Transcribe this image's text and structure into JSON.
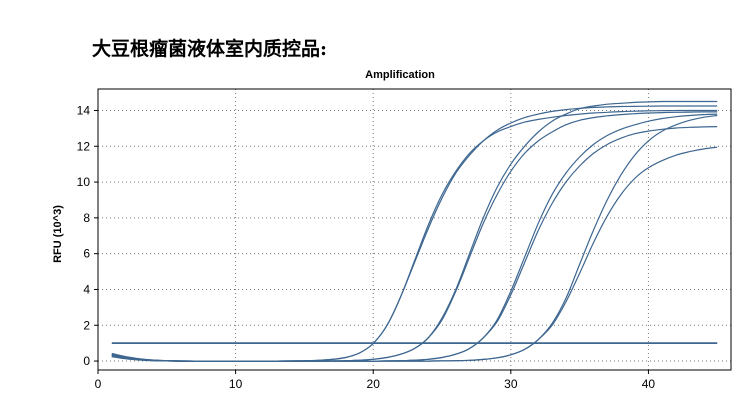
{
  "page": {
    "title": "大豆根瘤菌液体室内质控品:"
  },
  "chart_data": {
    "type": "line",
    "title": "Amplification",
    "xlabel": "",
    "ylabel": "RFU (10^3)",
    "xlim": [
      0,
      46
    ],
    "ylim": [
      -0.5,
      15.2
    ],
    "xticks": [
      0,
      10,
      20,
      30,
      40
    ],
    "yticks": [
      0,
      2,
      4,
      6,
      8,
      10,
      12,
      14
    ],
    "grid": true,
    "legend": "none",
    "line_color": "#3d6690",
    "threshold": {
      "value": 1.0,
      "x_range": [
        1,
        45
      ]
    },
    "x": [
      1,
      2,
      3,
      4,
      5,
      6,
      7,
      8,
      9,
      10,
      11,
      12,
      13,
      14,
      15,
      16,
      17,
      18,
      19,
      20,
      21,
      22,
      23,
      24,
      25,
      26,
      27,
      28,
      29,
      30,
      31,
      32,
      33,
      34,
      35,
      36,
      37,
      38,
      39,
      40,
      41,
      42,
      43,
      44,
      45
    ],
    "series": [
      {
        "values": [
          0.42,
          0.25,
          0.13,
          0.06,
          0.02,
          0.01,
          0.0,
          0.0,
          0.0,
          0.0,
          0.0,
          0.0,
          0.0,
          0.01,
          0.02,
          0.04,
          0.09,
          0.2,
          0.45,
          0.98,
          2.0,
          3.6,
          5.6,
          7.6,
          9.3,
          10.6,
          11.6,
          12.3,
          12.8,
          13.1,
          13.35,
          13.5,
          13.62,
          13.72,
          13.8,
          13.86,
          13.9,
          13.94,
          13.96,
          13.98,
          13.99,
          14.0,
          14.0,
          14.0,
          14.0
        ]
      },
      {
        "values": [
          0.38,
          0.22,
          0.11,
          0.05,
          0.02,
          0.01,
          0.0,
          0.0,
          0.0,
          0.0,
          0.0,
          0.0,
          0.0,
          0.01,
          0.02,
          0.04,
          0.09,
          0.2,
          0.45,
          0.98,
          2.0,
          3.6,
          5.5,
          7.4,
          9.1,
          10.5,
          11.5,
          12.3,
          12.9,
          13.3,
          13.6,
          13.8,
          13.95,
          14.05,
          14.12,
          14.17,
          14.2,
          14.22,
          14.23,
          14.24,
          14.25,
          14.25,
          14.25,
          14.25,
          14.25
        ]
      },
      {
        "values": [
          0.35,
          0.2,
          0.1,
          0.05,
          0.02,
          0.0,
          0.0,
          0.0,
          0.0,
          0.0,
          0.0,
          0.0,
          0.0,
          0.0,
          0.0,
          0.0,
          0.01,
          0.02,
          0.05,
          0.1,
          0.2,
          0.38,
          0.7,
          1.3,
          2.4,
          4.0,
          6.0,
          8.0,
          9.7,
          11.0,
          12.0,
          12.8,
          13.4,
          13.8,
          14.1,
          14.25,
          14.35,
          14.4,
          14.45,
          14.48,
          14.5,
          14.5,
          14.5,
          14.5,
          14.5
        ]
      },
      {
        "values": [
          0.33,
          0.18,
          0.09,
          0.04,
          0.01,
          0.0,
          0.0,
          0.0,
          0.0,
          0.0,
          0.0,
          0.0,
          0.0,
          0.0,
          0.0,
          0.0,
          0.01,
          0.02,
          0.05,
          0.1,
          0.2,
          0.38,
          0.7,
          1.3,
          2.3,
          3.9,
          5.8,
          7.7,
          9.3,
          10.6,
          11.6,
          12.3,
          12.8,
          13.2,
          13.45,
          13.6,
          13.7,
          13.77,
          13.82,
          13.86,
          13.88,
          13.9,
          13.91,
          13.92,
          13.92
        ]
      },
      {
        "values": [
          0.3,
          0.16,
          0.08,
          0.03,
          0.01,
          0.0,
          0.0,
          0.0,
          0.0,
          0.0,
          0.0,
          0.0,
          0.0,
          0.0,
          0.0,
          0.0,
          0.0,
          0.0,
          0.0,
          0.0,
          0.01,
          0.02,
          0.05,
          0.1,
          0.2,
          0.38,
          0.7,
          1.3,
          2.3,
          3.9,
          5.8,
          7.7,
          9.3,
          10.5,
          11.4,
          12.1,
          12.6,
          12.95,
          13.2,
          13.4,
          13.55,
          13.65,
          13.72,
          13.77,
          13.8
        ]
      },
      {
        "values": [
          0.28,
          0.15,
          0.07,
          0.03,
          0.01,
          0.0,
          0.0,
          0.0,
          0.0,
          0.0,
          0.0,
          0.0,
          0.0,
          0.0,
          0.0,
          0.0,
          0.0,
          0.0,
          0.0,
          0.0,
          0.01,
          0.02,
          0.05,
          0.1,
          0.2,
          0.38,
          0.7,
          1.3,
          2.2,
          3.7,
          5.5,
          7.3,
          8.8,
          10.0,
          10.9,
          11.6,
          12.1,
          12.45,
          12.7,
          12.85,
          12.95,
          13.02,
          13.06,
          13.08,
          13.1
        ]
      },
      {
        "values": [
          0.27,
          0.14,
          0.07,
          0.03,
          0.01,
          0.0,
          0.0,
          0.0,
          0.0,
          0.0,
          0.0,
          0.0,
          0.0,
          0.0,
          0.0,
          0.0,
          0.0,
          0.0,
          0.0,
          0.0,
          0.0,
          0.0,
          0.0,
          0.0,
          0.01,
          0.02,
          0.04,
          0.09,
          0.18,
          0.35,
          0.65,
          1.2,
          2.1,
          3.5,
          5.4,
          7.3,
          9.0,
          10.4,
          11.5,
          12.3,
          12.85,
          13.2,
          13.45,
          13.62,
          13.72
        ]
      },
      {
        "values": [
          0.25,
          0.13,
          0.06,
          0.02,
          0.01,
          0.0,
          0.0,
          0.0,
          0.0,
          0.0,
          0.0,
          0.0,
          0.0,
          0.0,
          0.0,
          0.0,
          0.0,
          0.0,
          0.0,
          0.0,
          0.0,
          0.0,
          0.0,
          0.0,
          0.01,
          0.02,
          0.04,
          0.09,
          0.18,
          0.35,
          0.65,
          1.2,
          2.0,
          3.3,
          4.9,
          6.6,
          8.1,
          9.3,
          10.2,
          10.8,
          11.2,
          11.5,
          11.7,
          11.85,
          11.95
        ]
      }
    ]
  }
}
